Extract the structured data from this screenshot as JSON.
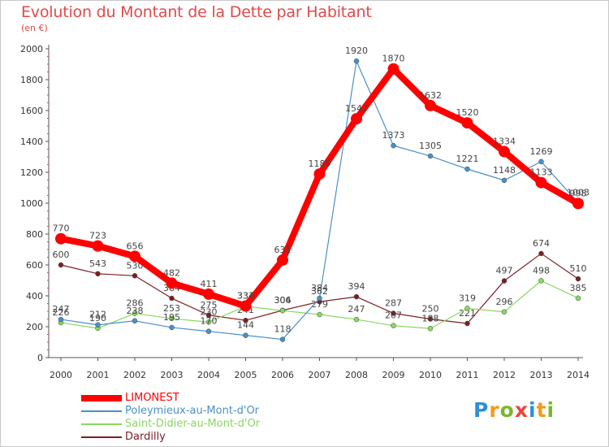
{
  "title": "Evolution du Montant de la Dette par Habitant",
  "subtitle": "(en €)",
  "logo": {
    "letters": [
      "P",
      "r",
      "o",
      "x",
      "i",
      "t",
      "i"
    ]
  },
  "chart_data": {
    "type": "line",
    "title": "Evolution du Montant de la Dette par Habitant",
    "subtitle": "(en €)",
    "xlabel": "",
    "ylabel": "",
    "ylim": [
      0,
      2000
    ],
    "yticks": [
      0,
      200,
      400,
      600,
      800,
      1000,
      1200,
      1400,
      1600,
      1800,
      2000
    ],
    "x": [
      "2000",
      "2001",
      "2002",
      "2003",
      "2004",
      "2005",
      "2006",
      "2007",
      "2008",
      "2009",
      "2010",
      "2011",
      "2012",
      "2013",
      "2014"
    ],
    "grid": false,
    "legend": "bottom-left",
    "series": [
      {
        "name": "LIMONEST",
        "color": "#ff0000",
        "values": [
          770,
          723,
          656,
          482,
          411,
          334,
          631,
          1189,
          1547,
          1870,
          1632,
          1520,
          1334,
          1133,
          998
        ]
      },
      {
        "name": "Poleymieux-au-Mont-d'Or",
        "color": "#4a90c8",
        "values": [
          247,
          212,
          238,
          195,
          170,
          144,
          118,
          384,
          1920,
          1373,
          1305,
          1221,
          1148,
          1269,
          1003
        ]
      },
      {
        "name": "Saint-Didier-au-Mont-d'Or",
        "color": "#88d860",
        "values": [
          226,
          190,
          286,
          253,
          230,
          333,
          304,
          279,
          247,
          207,
          188,
          319,
          296,
          498,
          385
        ]
      },
      {
        "name": "Dardilly",
        "color": "#7b1e23",
        "values": [
          600,
          543,
          530,
          384,
          275,
          241,
          306,
          362,
          394,
          287,
          250,
          221,
          497,
          674,
          510
        ]
      }
    ]
  }
}
